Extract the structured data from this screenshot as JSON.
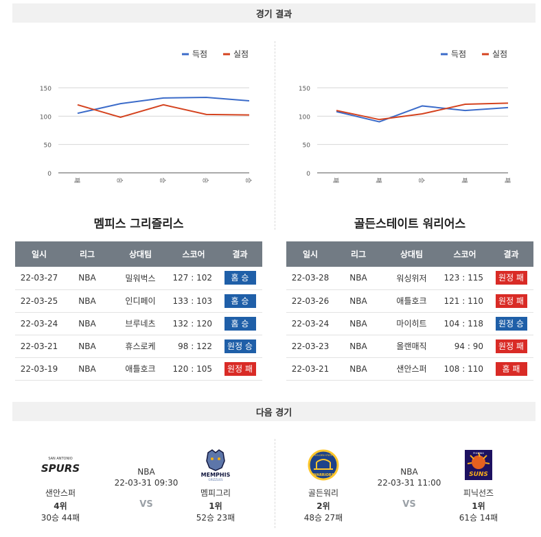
{
  "sections": {
    "results_title": "경기 결과",
    "next_title": "다음 경기"
  },
  "legend": {
    "scored": "득점",
    "conceded": "실점"
  },
  "colors": {
    "scored": "#3b6bc9",
    "conceded": "#d4421e",
    "win_badge": "#1f5fa8",
    "loss_badge": "#d92b26",
    "table_header": "#727b84"
  },
  "table_headers": [
    "일시",
    "리그",
    "상대팀",
    "스코어",
    "결과"
  ],
  "chart_data": [
    {
      "type": "line",
      "categories": [
        "패",
        "승",
        "승",
        "승",
        "승"
      ],
      "ylim": [
        0,
        150
      ],
      "yticks": [
        0,
        50,
        100,
        150
      ],
      "legend": "top-right",
      "series": [
        {
          "name": "득점",
          "values": [
            105,
            122,
            132,
            133,
            127
          ]
        },
        {
          "name": "실점",
          "values": [
            120,
            98,
            120,
            103,
            102
          ]
        }
      ]
    },
    {
      "type": "line",
      "categories": [
        "패",
        "패",
        "승",
        "패",
        "패"
      ],
      "ylim": [
        0,
        150
      ],
      "yticks": [
        0,
        50,
        100,
        150
      ],
      "legend": "top-right",
      "series": [
        {
          "name": "득점",
          "values": [
            108,
            90,
            118,
            110,
            115
          ]
        },
        {
          "name": "실점",
          "values": [
            110,
            94,
            104,
            121,
            123
          ]
        }
      ]
    }
  ],
  "teams": [
    {
      "title": "멤피스 그리즐리스",
      "rows": [
        {
          "date": "22-03-27",
          "league": "NBA",
          "opponent": "밀워벅스",
          "score": "127 : 102",
          "result": "홈 승",
          "color": "blue"
        },
        {
          "date": "22-03-25",
          "league": "NBA",
          "opponent": "인디페이",
          "score": "133 : 103",
          "result": "홈 승",
          "color": "blue"
        },
        {
          "date": "22-03-24",
          "league": "NBA",
          "opponent": "브루네츠",
          "score": "132 : 120",
          "result": "홈 승",
          "color": "blue"
        },
        {
          "date": "22-03-21",
          "league": "NBA",
          "opponent": "휴스로케",
          "score": "98 : 122",
          "result": "원정 승",
          "color": "blue"
        },
        {
          "date": "22-03-19",
          "league": "NBA",
          "opponent": "애틀호크",
          "score": "120 : 105",
          "result": "원정 패",
          "color": "red"
        }
      ]
    },
    {
      "title": "골든스테이트 워리어스",
      "rows": [
        {
          "date": "22-03-28",
          "league": "NBA",
          "opponent": "워싱위저",
          "score": "123 : 115",
          "result": "원정 패",
          "color": "red"
        },
        {
          "date": "22-03-26",
          "league": "NBA",
          "opponent": "애틀호크",
          "score": "121 : 110",
          "result": "원정 패",
          "color": "red"
        },
        {
          "date": "22-03-24",
          "league": "NBA",
          "opponent": "마이히트",
          "score": "104 : 118",
          "result": "원정 승",
          "color": "blue"
        },
        {
          "date": "22-03-23",
          "league": "NBA",
          "opponent": "올랜매직",
          "score": "94 : 90",
          "result": "원정 패",
          "color": "red"
        },
        {
          "date": "22-03-21",
          "league": "NBA",
          "opponent": "샌안스퍼",
          "score": "108 : 110",
          "result": "홈 패",
          "color": "red"
        }
      ]
    }
  ],
  "next_games": [
    {
      "league": "NBA",
      "datetime": "22-03-31 09:30",
      "vs": "VS",
      "away": {
        "name": "샌안스퍼",
        "rank": "4위",
        "record": "30승 44패",
        "logo_icon": "spurs-logo-icon",
        "logo_text": "SPURS",
        "logo_subtext": "SAN ANTONIO"
      },
      "home": {
        "name": "멤피그리",
        "rank": "1위",
        "record": "52승 23패",
        "logo_icon": "grizzlies-logo-icon",
        "logo_text": "MEMPHIS",
        "logo_subtext": "GRIZZLIES"
      }
    },
    {
      "league": "NBA",
      "datetime": "22-03-31 11:00",
      "vs": "VS",
      "away": {
        "name": "골든워리",
        "rank": "2위",
        "record": "48승 27패",
        "logo_icon": "warriors-logo-icon",
        "logo_text": "WARRIORS",
        "logo_subtext": "GOLDEN STATE"
      },
      "home": {
        "name": "피닉선즈",
        "rank": "1위",
        "record": "61승 14패",
        "logo_icon": "suns-logo-icon",
        "logo_text": "SUNS",
        "logo_subtext": "PHOENIX"
      }
    }
  ]
}
